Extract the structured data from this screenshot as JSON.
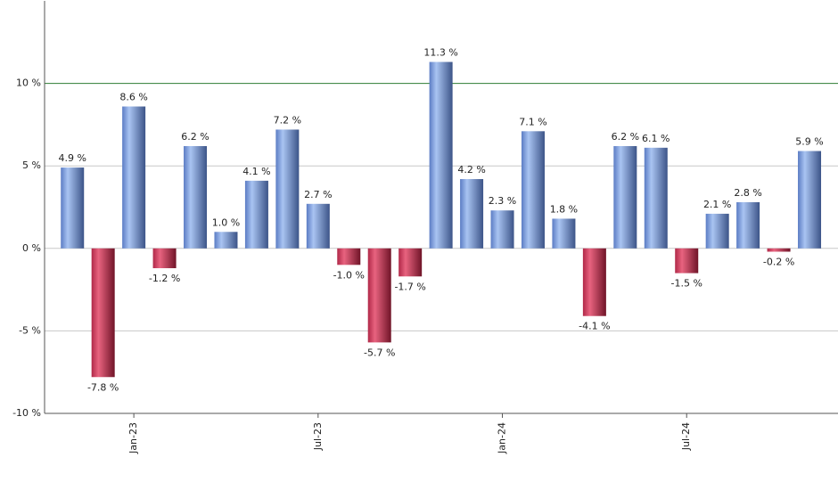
{
  "chart_data": {
    "type": "bar",
    "categories": [
      null,
      null,
      "Jan-23",
      null,
      null,
      null,
      null,
      null,
      "Jul-23",
      null,
      null,
      null,
      null,
      null,
      "Jan-24",
      null,
      null,
      null,
      null,
      null,
      "Jul-24",
      null,
      null,
      null,
      null
    ],
    "values": [
      4.9,
      -7.8,
      8.6,
      -1.2,
      6.2,
      1.0,
      4.1,
      7.2,
      2.7,
      -1.0,
      -5.7,
      -1.7,
      11.3,
      4.2,
      2.3,
      7.1,
      1.8,
      -4.1,
      6.2,
      6.1,
      -1.5,
      2.1,
      2.8,
      -0.2,
      5.9
    ],
    "value_labels": [
      "4.9 %",
      "-7.8 %",
      "8.6 %",
      "-1.2 %",
      "6.2 %",
      "1.0 %",
      "4.1 %",
      "7.2 %",
      "2.7 %",
      "-1.0 %",
      "-5.7 %",
      "-1.7 %",
      "11.3 %",
      "4.2 %",
      "2.3 %",
      "7.1 %",
      "1.8 %",
      "-4.1 %",
      "6.2 %",
      "6.1 %",
      "-1.5 %",
      "2.1 %",
      "2.8 %",
      "-0.2 %",
      "5.9 %"
    ],
    "positive_color": "#7a9ee0",
    "negative_color": "#c8395a",
    "ylim": [
      -10,
      15
    ],
    "yticks": [
      {
        "value": -10,
        "label": "-10 %"
      },
      {
        "value": -5,
        "label": "-5 %"
      },
      {
        "value": 0,
        "label": "0 %"
      },
      {
        "value": 5,
        "label": "5 %"
      },
      {
        "value": 10,
        "label": "10 %"
      }
    ],
    "reference_line": {
      "value": 10,
      "color": "#2e7d32"
    },
    "grid": true
  }
}
